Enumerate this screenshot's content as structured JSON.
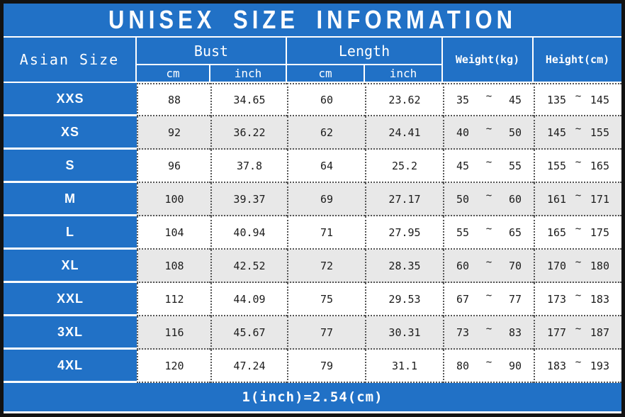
{
  "chart_data": {
    "type": "table",
    "title": "UNISEX SIZE INFORMATION",
    "columns": [
      "Asian Size",
      "Bust cm",
      "Bust inch",
      "Length cm",
      "Length inch",
      "Weight(kg)",
      "Height(cm)"
    ],
    "rows": [
      {
        "size": "XXS",
        "bust_cm": "88",
        "bust_inch": "34.65",
        "length_cm": "60",
        "length_inch": "23.62",
        "weight_min": "35",
        "weight_max": "45",
        "height_min": "135",
        "height_max": "145"
      },
      {
        "size": "XS",
        "bust_cm": "92",
        "bust_inch": "36.22",
        "length_cm": "62",
        "length_inch": "24.41",
        "weight_min": "40",
        "weight_max": "50",
        "height_min": "145",
        "height_max": "155"
      },
      {
        "size": "S",
        "bust_cm": "96",
        "bust_inch": "37.8",
        "length_cm": "64",
        "length_inch": "25.2",
        "weight_min": "45",
        "weight_max": "55",
        "height_min": "155",
        "height_max": "165"
      },
      {
        "size": "M",
        "bust_cm": "100",
        "bust_inch": "39.37",
        "length_cm": "69",
        "length_inch": "27.17",
        "weight_min": "50",
        "weight_max": "60",
        "height_min": "161",
        "height_max": "171"
      },
      {
        "size": "L",
        "bust_cm": "104",
        "bust_inch": "40.94",
        "length_cm": "71",
        "length_inch": "27.95",
        "weight_min": "55",
        "weight_max": "65",
        "height_min": "165",
        "height_max": "175"
      },
      {
        "size": "XL",
        "bust_cm": "108",
        "bust_inch": "42.52",
        "length_cm": "72",
        "length_inch": "28.35",
        "weight_min": "60",
        "weight_max": "70",
        "height_min": "170",
        "height_max": "180"
      },
      {
        "size": "XXL",
        "bust_cm": "112",
        "bust_inch": "44.09",
        "length_cm": "75",
        "length_inch": "29.53",
        "weight_min": "67",
        "weight_max": "77",
        "height_min": "173",
        "height_max": "183"
      },
      {
        "size": "3XL",
        "bust_cm": "116",
        "bust_inch": "45.67",
        "length_cm": "77",
        "length_inch": "30.31",
        "weight_min": "73",
        "weight_max": "83",
        "height_min": "177",
        "height_max": "187"
      },
      {
        "size": "4XL",
        "bust_cm": "120",
        "bust_inch": "47.24",
        "length_cm": "79",
        "length_inch": "31.1",
        "weight_min": "80",
        "weight_max": "90",
        "height_min": "183",
        "height_max": "193"
      }
    ],
    "footnote": "1(inch)=2.54(cm)"
  },
  "header": {
    "asian_size": "Asian Size",
    "bust": "Bust",
    "length": "Length",
    "weight": "Weight(kg)",
    "height": "Height(cm)",
    "cm": "cm",
    "inch": "inch"
  },
  "tilde": "~",
  "colors": {
    "header_blue": "#2171c6",
    "row_white": "#ffffff",
    "row_alt_gray": "#e8e8e8",
    "outer_border": "#121212",
    "dotted_border": "#555555",
    "text_dark": "#1c1c1c",
    "text_white": "#ffffff"
  }
}
